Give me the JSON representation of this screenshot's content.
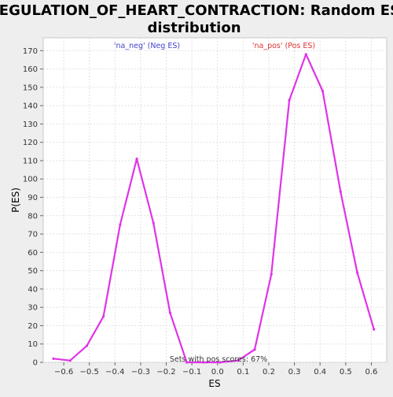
{
  "chart_data": {
    "type": "line",
    "title": "REGULATION_OF_HEART_CONTRACTION: Random ES distribution",
    "title_lines": [
      "REGULATION_OF_HEART_CONTRACTION: Random ES",
      "distribution"
    ],
    "xlabel": "ES",
    "ylabel": "P(ES)",
    "xlim": [
      -0.68,
      0.66
    ],
    "ylim": [
      0,
      177
    ],
    "x_ticks": [
      -0.6,
      -0.5,
      -0.4,
      -0.3,
      -0.2,
      -0.1,
      0.0,
      0.1,
      0.2,
      0.3,
      0.4,
      0.5,
      0.6
    ],
    "x_tick_labels": [
      "−0.6",
      "−0.5",
      "−0.4",
      "−0.3",
      "−0.2",
      "−0.1",
      "0.0",
      "0.1",
      "0.2",
      "0.3",
      "0.4",
      "0.5",
      "0.6"
    ],
    "y_ticks": [
      0,
      10,
      20,
      30,
      40,
      50,
      60,
      70,
      80,
      90,
      100,
      110,
      120,
      130,
      140,
      150,
      160,
      170
    ],
    "grid": true,
    "series": [
      {
        "color": "#e033e8",
        "x": [
          -0.64,
          -0.575,
          -0.51,
          -0.445,
          -0.38,
          -0.315,
          -0.25,
          -0.185,
          -0.12,
          -0.055,
          0.01,
          0.08,
          0.145,
          0.21,
          0.28,
          0.345,
          0.41,
          0.48,
          0.545,
          0.61
        ],
        "y": [
          2,
          1,
          9,
          25,
          75,
          111,
          76,
          27,
          0,
          0,
          0,
          1,
          7,
          48,
          143,
          168,
          148,
          93,
          49,
          18
        ]
      }
    ],
    "annotations": [
      {
        "text": "'na_neg' (Neg ES)",
        "color": "#4444cc"
      },
      {
        "text": "'na_pos' (Pos ES)",
        "color": "#dd3333"
      },
      {
        "text": "Sets with pos scores: 67%",
        "color": "#333333"
      }
    ]
  }
}
